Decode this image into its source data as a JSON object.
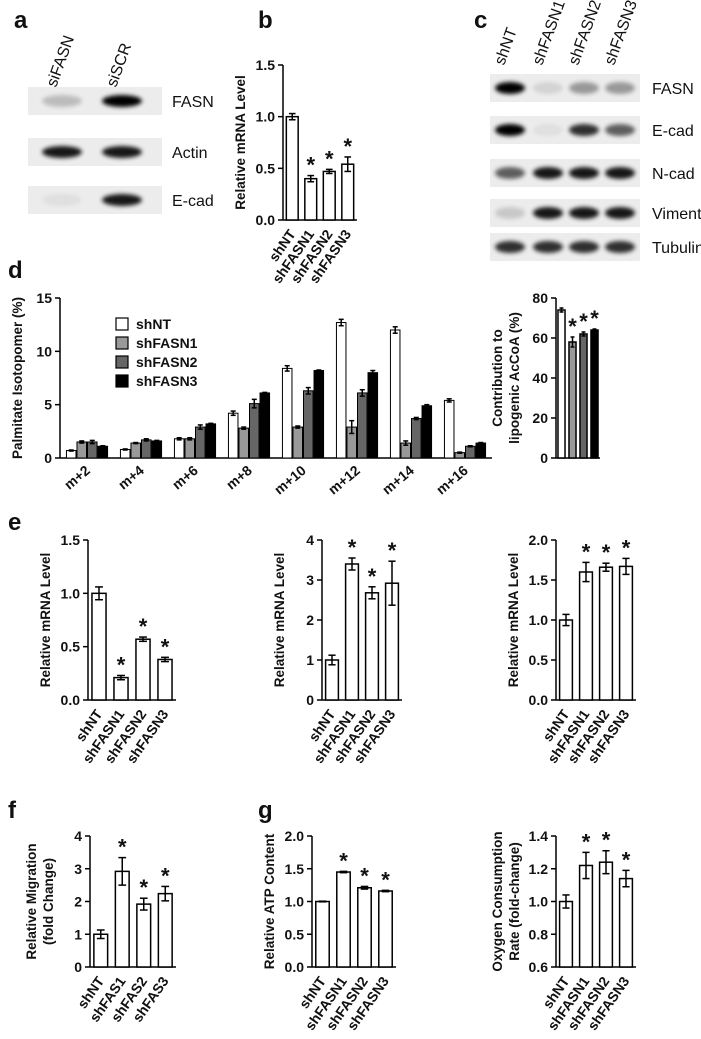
{
  "panel_letters": [
    "a",
    "b",
    "c",
    "d",
    "e",
    "f",
    "g"
  ],
  "blots": [
    {
      "lanes": [
        "siFASN",
        "siSCR"
      ],
      "bands": [
        "FASN",
        "Actin",
        "E-cad"
      ]
    },
    {
      "lanes": [
        "shNT",
        "shFASN1",
        "shFASN2",
        "shFASN3"
      ],
      "bands": [
        "FASN",
        "E-cad",
        "N-cad",
        "Vimentin",
        "Tubulin"
      ]
    }
  ],
  "chart_data": [
    {
      "type": "bar",
      "ylabel": [
        "Relative mRNA Level"
      ],
      "categories": [
        "shNT",
        "shFASN1",
        "shFASN2",
        "shFASN3"
      ],
      "values": [
        1.0,
        0.4,
        0.47,
        0.54
      ],
      "errors": [
        0.03,
        0.03,
        0.02,
        0.07
      ],
      "significance": [
        null,
        "*",
        "*",
        "*"
      ],
      "color": "#ffffff",
      "ylim": [
        0,
        1.5
      ],
      "yticks": [
        {
          "value": 0,
          "label": "0.0"
        },
        0.5,
        {
          "value": 1,
          "label": "1.0"
        },
        1.5
      ]
    },
    {
      "type": "grouped_bar",
      "ylabel": [
        "Palmitate Isotopomer (%)"
      ],
      "categories": [
        "m+2",
        "m+4",
        "m+6",
        "m+8",
        "m+10",
        "m+12",
        "m+14",
        "m+16"
      ],
      "series": [
        {
          "name": "shNT",
          "color": "#ffffff",
          "values": [
            0.7,
            0.8,
            1.8,
            4.2,
            8.4,
            12.7,
            12.0,
            5.4
          ],
          "errors": [
            0.05,
            0.05,
            0.1,
            0.2,
            0.25,
            0.3,
            0.3,
            0.15
          ]
        },
        {
          "name": "shFASN1",
          "color": "#999999",
          "values": [
            1.5,
            1.4,
            1.8,
            2.8,
            2.9,
            2.9,
            1.4,
            0.5
          ],
          "errors": [
            0.1,
            0.05,
            0.1,
            0.1,
            0.1,
            0.6,
            0.2,
            0.05
          ]
        },
        {
          "name": "shFASN2",
          "color": "#666666",
          "values": [
            1.5,
            1.7,
            2.9,
            5.1,
            6.3,
            6.1,
            3.7,
            1.1
          ],
          "errors": [
            0.15,
            0.1,
            0.2,
            0.4,
            0.3,
            0.3,
            0.1,
            0.05
          ]
        },
        {
          "name": "shFASN3",
          "color": "#000000",
          "values": [
            1.1,
            1.6,
            3.2,
            6.1,
            8.2,
            8.0,
            4.9,
            1.4
          ],
          "errors": [
            0.05,
            0.05,
            0.05,
            0.05,
            0.05,
            0.2,
            0.1,
            0.05
          ]
        }
      ],
      "ylim": [
        0,
        15
      ],
      "yticks": [
        0,
        5,
        10,
        15
      ]
    },
    {
      "type": "bar",
      "ylabel": [
        "Contribution to",
        "lipogenic AcCoA (%)"
      ],
      "categories": [
        null,
        null,
        null,
        null
      ],
      "values": [
        74,
        58,
        62,
        64
      ],
      "errors": [
        1,
        2.5,
        1,
        0.5
      ],
      "significance": [
        null,
        "*",
        "*",
        "*"
      ],
      "colors": [
        "#ffffff",
        "#999999",
        "#666666",
        "#000000"
      ],
      "ylim": [
        0,
        80
      ],
      "yticks": [
        0,
        20,
        40,
        60,
        80
      ]
    },
    {
      "type": "bar",
      "ylabel": [
        "Relative mRNA Level"
      ],
      "categories": [
        "shNT",
        "shFASN1",
        "shFASN2",
        "shFASN3"
      ],
      "values": [
        1.0,
        0.21,
        0.57,
        0.38
      ],
      "errors": [
        0.06,
        0.02,
        0.02,
        0.02
      ],
      "significance": [
        null,
        "*",
        "*",
        "*"
      ],
      "color": "#ffffff",
      "ylim": [
        0,
        1.5
      ],
      "yticks": [
        {
          "value": 0,
          "label": "0.0"
        },
        0.5,
        {
          "value": 1,
          "label": "1.0"
        },
        1.5
      ]
    },
    {
      "type": "bar",
      "ylabel": [
        "Relative mRNA Level"
      ],
      "categories": [
        "shNT",
        "shFASN1",
        "shFASN2",
        "shFASN3"
      ],
      "values": [
        1.0,
        3.4,
        2.68,
        2.92
      ],
      "errors": [
        0.12,
        0.15,
        0.15,
        0.55
      ],
      "significance": [
        null,
        "*",
        "*",
        "*"
      ],
      "color": "#ffffff",
      "ylim": [
        0,
        4
      ],
      "yticks": [
        0,
        1,
        2,
        3,
        4
      ]
    },
    {
      "type": "bar",
      "ylabel": [
        "Relative mRNA Level"
      ],
      "categories": [
        "shNT",
        "shFASN1",
        "shFASN2",
        "shFASN3"
      ],
      "values": [
        1.0,
        1.6,
        1.66,
        1.67
      ],
      "errors": [
        0.07,
        0.12,
        0.05,
        0.1
      ],
      "significance": [
        null,
        "*",
        "*",
        "*"
      ],
      "color": "#ffffff",
      "ylim": [
        0,
        2
      ],
      "yticks": [
        {
          "value": 0,
          "label": "0.0"
        },
        0.5,
        {
          "value": 1,
          "label": "1.0"
        },
        1.5,
        {
          "value": 2,
          "label": "2.0"
        }
      ]
    },
    {
      "type": "bar",
      "ylabel": [
        "Relative Migration",
        "(fold Change)"
      ],
      "categories": [
        "shNT",
        "shFAS1",
        "shFAS2",
        "shFAS3"
      ],
      "values": [
        1.0,
        2.92,
        1.92,
        2.24
      ],
      "errors": [
        0.13,
        0.42,
        0.18,
        0.22
      ],
      "significance": [
        null,
        "*",
        "*",
        "*"
      ],
      "color": "#ffffff",
      "ylim": [
        0,
        4
      ],
      "yticks": [
        0,
        1,
        2,
        3,
        4
      ]
    },
    {
      "type": "bar",
      "ylabel": [
        "Relative ATP Content"
      ],
      "categories": [
        "shNT",
        "shFASN1",
        "shFASN2",
        "shFASN3"
      ],
      "values": [
        1.0,
        1.45,
        1.21,
        1.16
      ],
      "errors": [
        0.005,
        0.01,
        0.02,
        0.01
      ],
      "significance": [
        null,
        "*",
        "*",
        "*"
      ],
      "color": "#ffffff",
      "ylim": [
        0,
        2
      ],
      "yticks": [
        {
          "value": 0,
          "label": "0.0"
        },
        0.5,
        {
          "value": 1,
          "label": "1.0"
        },
        1.5,
        {
          "value": 2,
          "label": "2.0"
        }
      ]
    },
    {
      "type": "bar",
      "ylabel": [
        "Oxygen Consumption",
        "Rate (fold-change)"
      ],
      "categories": [
        "shNT",
        "shFASN1",
        "shFASN2",
        "shFASN3"
      ],
      "values": [
        1.0,
        1.22,
        1.24,
        1.14
      ],
      "errors": [
        0.04,
        0.08,
        0.07,
        0.05
      ],
      "significance": [
        null,
        "*",
        "*",
        "*"
      ],
      "color": "#ffffff",
      "ylim": [
        0.6,
        1.4
      ],
      "yticks": [
        0.6,
        0.8,
        {
          "value": 1,
          "label": "1.0"
        },
        1.2,
        1.4
      ]
    }
  ]
}
